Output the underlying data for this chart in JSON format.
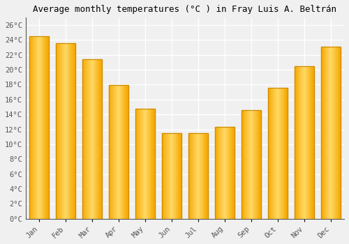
{
  "title": "Average monthly temperatures (°C ) in Fray Luis A. Beltrán",
  "months": [
    "Jan",
    "Feb",
    "Mar",
    "Apr",
    "May",
    "Jun",
    "Jul",
    "Aug",
    "Sep",
    "Oct",
    "Nov",
    "Dec"
  ],
  "values": [
    24.5,
    23.6,
    21.4,
    17.9,
    14.8,
    11.5,
    11.5,
    12.3,
    14.6,
    17.6,
    20.5,
    23.1
  ],
  "bar_color_dark": "#F5A800",
  "bar_color_light": "#FFD966",
  "bar_edge_color": "#CC8800",
  "ylim": [
    0,
    27
  ],
  "yticks": [
    0,
    2,
    4,
    6,
    8,
    10,
    12,
    14,
    16,
    18,
    20,
    22,
    24,
    26
  ],
  "ytick_labels": [
    "0°C",
    "2°C",
    "4°C",
    "6°C",
    "8°C",
    "10°C",
    "12°C",
    "14°C",
    "16°C",
    "18°C",
    "20°C",
    "22°C",
    "24°C",
    "26°C"
  ],
  "bg_color": "#f0f0f0",
  "plot_bg_color": "#f0f0f0",
  "grid_color": "#ffffff",
  "title_fontsize": 9,
  "tick_fontsize": 7.5,
  "font_family": "monospace"
}
